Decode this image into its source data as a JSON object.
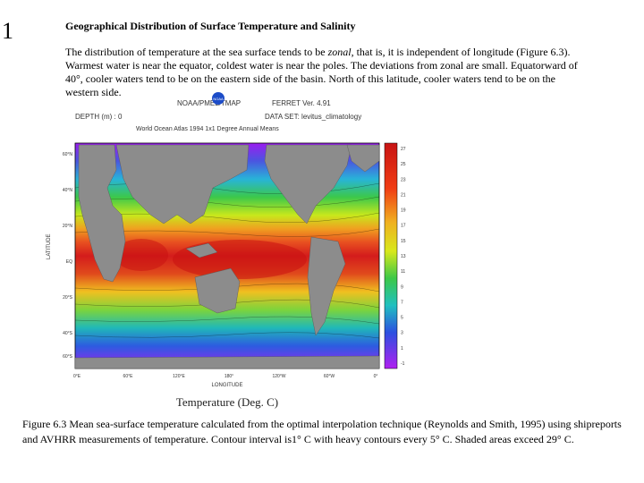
{
  "slide": {
    "number": "1"
  },
  "title": "Geographical Distribution of Surface Temperature and Salinity",
  "body": {
    "part1": "The distribution of temperature at the sea surface tends to be ",
    "zonal": "zonal",
    "part2": ", that is, it is independent of longitude (Figure 6.3). Warmest water is near the equator, coldest water is near the poles. The deviations from zonal are small. Equatorward of 40°, cooler waters tend to be on the eastern side of the basin. North of this latitude, cooler waters tend to be on the western side."
  },
  "figure": {
    "header_left": "NOAA/PMEL/TMAP",
    "header_right": "FERRET Ver. 4.91",
    "depth_label": "DEPTH (m) : 0",
    "data_set": "DATA SET: levitus_climatology",
    "subtitle": "World Ocean Atlas 1994 1x1 Degree Annual Means",
    "noaa_logo_text": "NOAA",
    "y_axis_label": "LATITUDE",
    "x_axis_label": "LONGITUDE",
    "lat_labels": [
      "60°N",
      "40°N",
      "20°N",
      "EQ",
      "20°S",
      "40°S",
      "60°S"
    ],
    "lon_labels": [
      "0°E",
      "60°E",
      "120°E",
      "180°",
      "120°W",
      "60°W",
      "0°"
    ],
    "colorbar_labels": [
      "27",
      "25",
      "23",
      "21",
      "19",
      "17",
      "15",
      "13",
      "11",
      "9",
      "7",
      "5",
      "3",
      "1",
      "-1"
    ],
    "colorbar_title": "Temperature (Deg. C)"
  },
  "caption": "Figure 6.3 Mean sea-surface temperature calculated from the optimal interpolation technique (Reynolds and Smith, 1995) using shipreports and AVHRR measurements of temperature. Contour interval is1° C with heavy contours every 5° C. Shaded areas exceed 29° C.",
  "colors": {
    "land": "#8c8c8c",
    "warm": "#d41c1c",
    "cold": "#a020f0"
  }
}
